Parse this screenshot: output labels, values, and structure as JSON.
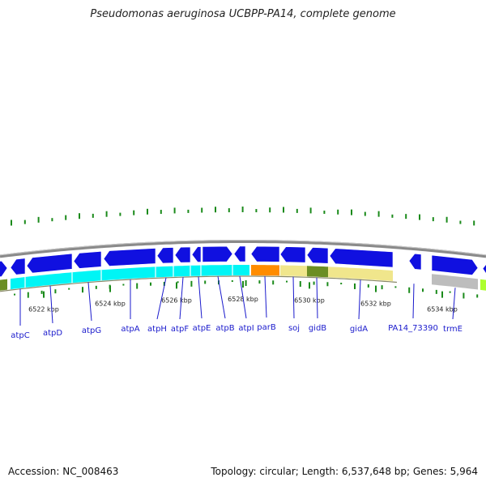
{
  "title": "Pseudomonas aeruginosa UCBPP-PA14, complete genome",
  "footer": {
    "accession": "Accession: NC_008463",
    "summary": "Topology: circular; Length: 6,537,648 bp; Genes: 5,964"
  },
  "ticks": [
    {
      "label": "6522 kbp"
    },
    {
      "label": "6524 kbp"
    },
    {
      "label": "6526 kbp"
    },
    {
      "label": "6528 kbp"
    },
    {
      "label": "6530 kbp"
    },
    {
      "label": "6532 kbp"
    },
    {
      "label": "6534 kbp"
    }
  ],
  "genes": [
    {
      "label": "atpC"
    },
    {
      "label": "atpD"
    },
    {
      "label": "atpG"
    },
    {
      "label": "atpA"
    },
    {
      "label": "atpH"
    },
    {
      "label": "atpF"
    },
    {
      "label": "atpE"
    },
    {
      "label": "atpB"
    },
    {
      "label": "atpI"
    },
    {
      "label": "parB"
    },
    {
      "label": "soj"
    },
    {
      "label": "gidB"
    },
    {
      "label": "gidA"
    },
    {
      "label": "PA14_73390"
    },
    {
      "label": "trmE"
    }
  ],
  "colors": {
    "backbone": "#8a8a8a",
    "cds": "#1010e0",
    "cog_cyan": "#00f5f5",
    "cog_orange": "#ff8c00",
    "cog_khaki": "#f0e68c",
    "cog_olive": "#6b8e23",
    "cog_gray": "#bdbdbd",
    "cog_lime": "#adff2f",
    "skew": "#1a8a1a",
    "label": "#1a1acc"
  }
}
